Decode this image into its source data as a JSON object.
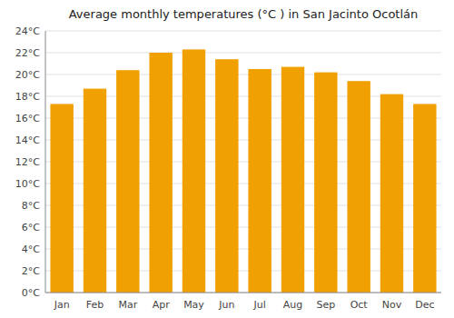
{
  "chart_data": {
    "type": "bar",
    "title": "Average monthly temperatures (°C ) in San Jacinto Ocotlán",
    "categories": [
      "Jan",
      "Feb",
      "Mar",
      "Apr",
      "May",
      "Jun",
      "Jul",
      "Aug",
      "Sep",
      "Oct",
      "Nov",
      "Dec"
    ],
    "values": [
      17.3,
      18.7,
      20.4,
      22.0,
      22.3,
      21.4,
      20.5,
      20.7,
      20.2,
      19.4,
      18.2,
      17.3
    ],
    "color": "#F0A000",
    "ylim": [
      0,
      24
    ],
    "yticks": [
      {
        "value": 0,
        "label": "0°C"
      },
      {
        "value": 2,
        "label": "2°C"
      },
      {
        "value": 4,
        "label": "4°C"
      },
      {
        "value": 6,
        "label": "6°C"
      },
      {
        "value": 8,
        "label": "8°C"
      },
      {
        "value": 10,
        "label": "10°C"
      },
      {
        "value": 12,
        "label": "12°C"
      },
      {
        "value": 14,
        "label": "14°C"
      },
      {
        "value": 16,
        "label": "16°C"
      },
      {
        "value": 18,
        "label": "18°C"
      },
      {
        "value": 20,
        "label": "20°C"
      },
      {
        "value": 22,
        "label": "22°C"
      },
      {
        "value": 24,
        "label": "24°C"
      }
    ],
    "grid": true
  }
}
